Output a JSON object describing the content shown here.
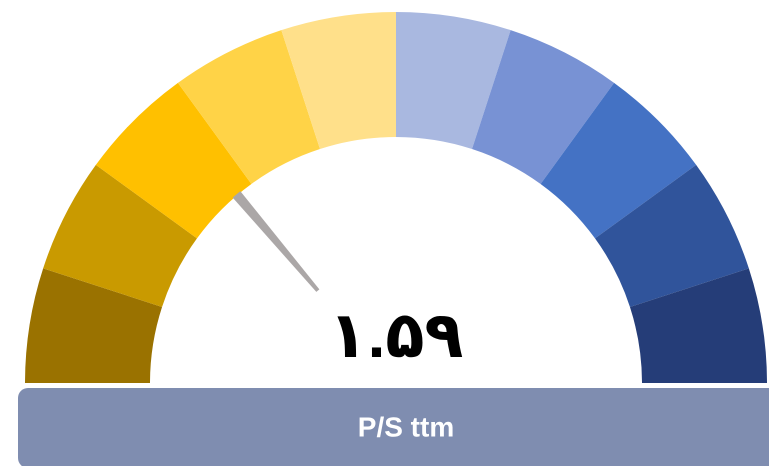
{
  "chart_data": {
    "type": "gauge",
    "values": [
      1.59
    ],
    "value_labels": [
      "۱.۵۹"
    ],
    "label": "P/S ttm",
    "ylim": [
      0,
      5.75
    ],
    "segment_colors": [
      "#9a7200",
      "#c99a00",
      "#ffc000",
      "#ffd347",
      "#ffe08a",
      "#a9b8e0",
      "#7892d4",
      "#4472c4",
      "#30549b",
      "#253d78"
    ],
    "needle_color": "#aba7a7",
    "label_bar_color": "#7f8db0"
  }
}
